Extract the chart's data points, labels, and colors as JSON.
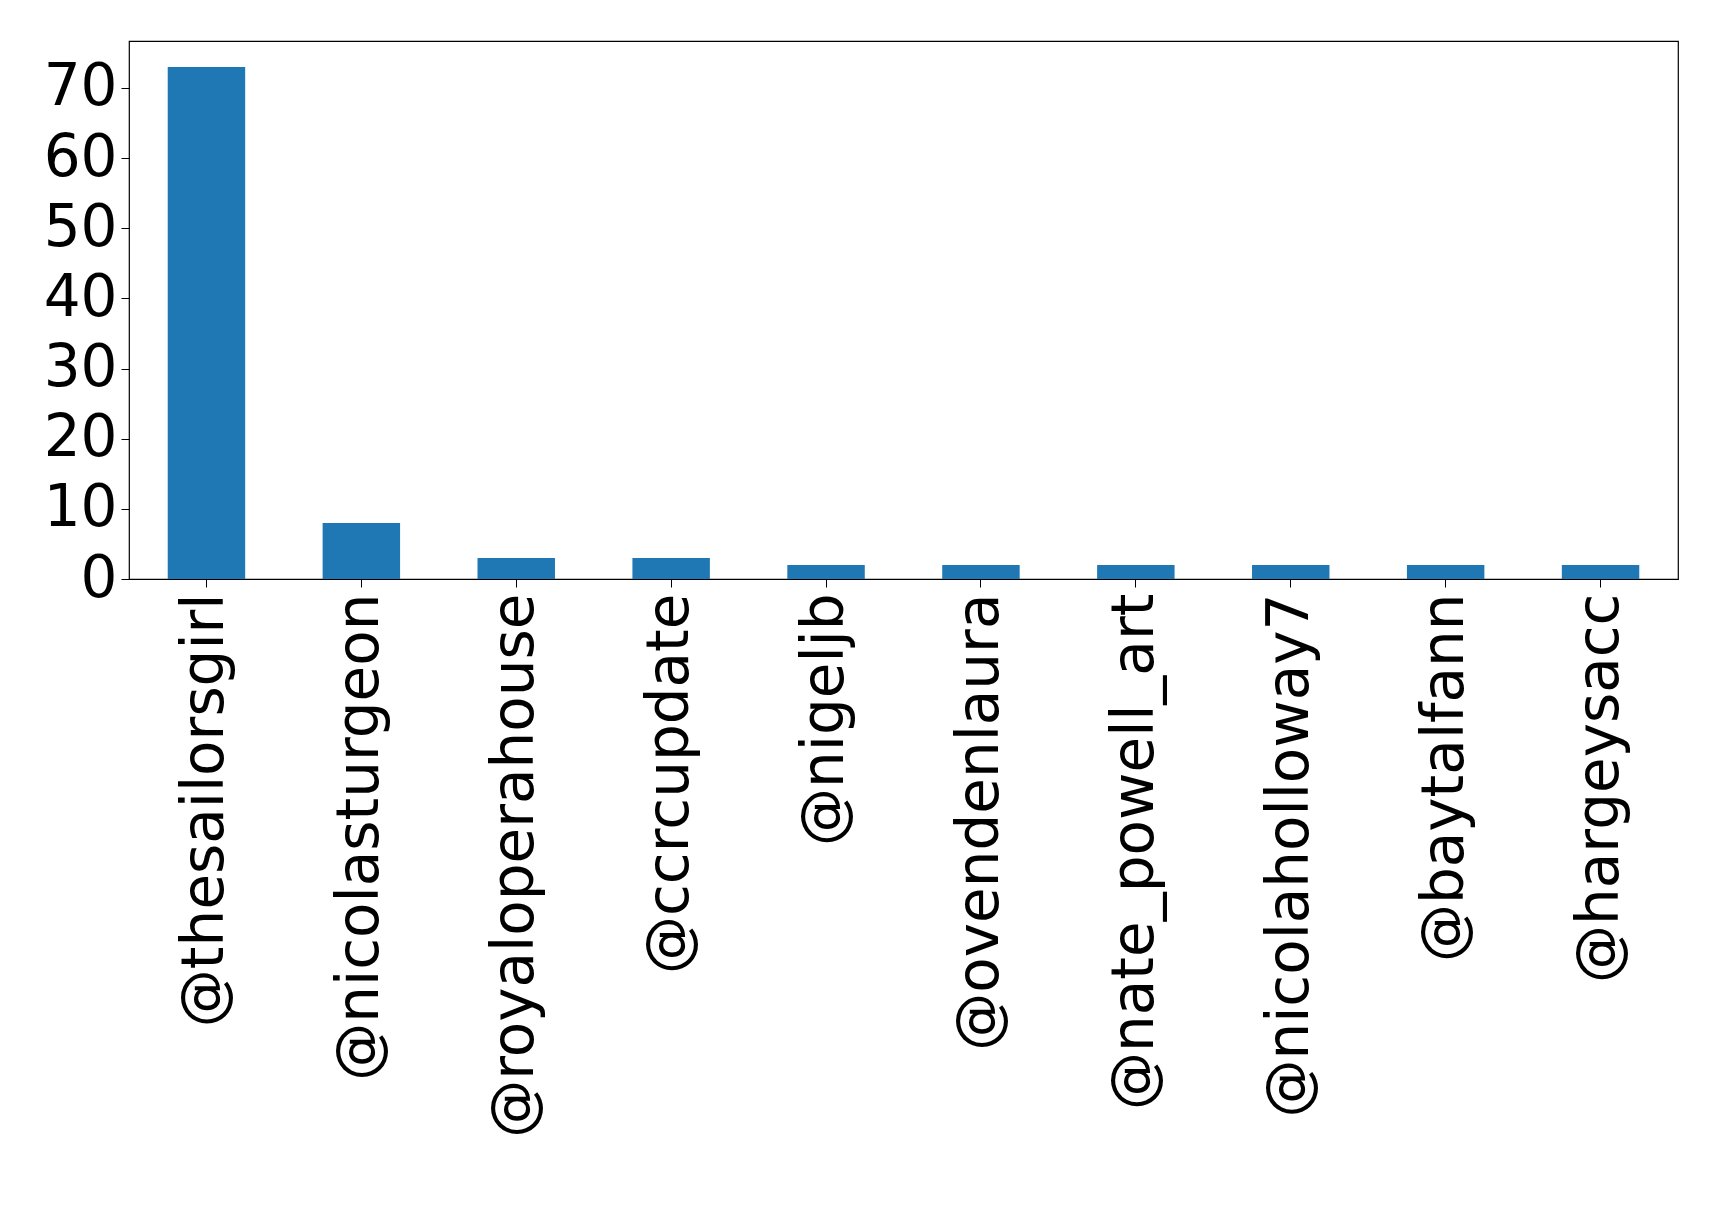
{
  "chart_data": {
    "type": "bar",
    "categories": [
      "@thesailorsgirl",
      "@nicolasturgeon",
      "@royaloperahouse",
      "@ccrcupdate",
      "@nigeljb",
      "@ovendenlaura",
      "@nate_powell_art",
      "@nicolaholloway7",
      "@baytalfann",
      "@hargeysacc"
    ],
    "values": [
      73,
      8,
      3,
      3,
      2,
      2,
      2,
      2,
      2,
      2
    ],
    "color": "#1f77b4",
    "ylim": [
      0,
      76.7
    ],
    "yticks": [
      0,
      10,
      20,
      30,
      40,
      50,
      60,
      70
    ],
    "grid": false
  }
}
